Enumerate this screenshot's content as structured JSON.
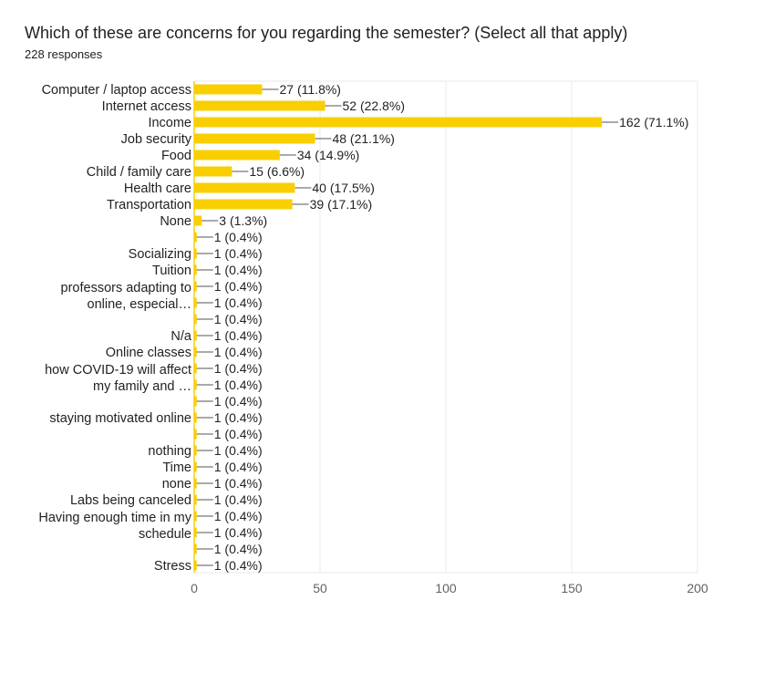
{
  "title": "Which of these are concerns for you regarding the semester? (Select all that apply)",
  "responses": "228 responses",
  "colors": {
    "bar": "#f9cf02",
    "grid": "#e8eaed",
    "axis": "#9aa0a6",
    "leader": "#555555"
  },
  "chart_data": {
    "type": "bar",
    "orientation": "horizontal",
    "xlim": [
      0,
      200
    ],
    "xticks": [
      0,
      50,
      100,
      150,
      200
    ],
    "grid": true,
    "rows": [
      {
        "category": "Computer / laptop access",
        "value": 27,
        "label": "27 (11.8%)"
      },
      {
        "category": "Internet access",
        "value": 52,
        "label": "52 (22.8%)"
      },
      {
        "category": "Income",
        "value": 162,
        "label": "162 (71.1%)"
      },
      {
        "category": "Job security",
        "value": 48,
        "label": "48 (21.1%)"
      },
      {
        "category": "Food",
        "value": 34,
        "label": "34 (14.9%)"
      },
      {
        "category": "Child / family care",
        "value": 15,
        "label": "15 (6.6%)"
      },
      {
        "category": "Health care",
        "value": 40,
        "label": "40 (17.5%)"
      },
      {
        "category": "Transportation",
        "value": 39,
        "label": "39 (17.1%)"
      },
      {
        "category": "None",
        "value": 3,
        "label": "3 (1.3%)"
      },
      {
        "category": "",
        "value": 1,
        "label": "1 (0.4%)"
      },
      {
        "category": "Socializing",
        "value": 1,
        "label": "1 (0.4%)"
      },
      {
        "category": "Tuition",
        "value": 1,
        "label": "1 (0.4%)"
      },
      {
        "category": "professors adapting to online, especial…",
        "value": 1,
        "label": "1 (0.4%)"
      },
      {
        "category": "",
        "value": 1,
        "label": "1 (0.4%)"
      },
      {
        "category": "",
        "value": 1,
        "label": "1 (0.4%)"
      },
      {
        "category": "N/a",
        "value": 1,
        "label": "1 (0.4%)"
      },
      {
        "category": "Online classes",
        "value": 1,
        "label": "1 (0.4%)"
      },
      {
        "category": "how COVID-19 will affect my family and …",
        "value": 1,
        "label": "1 (0.4%)"
      },
      {
        "category": "",
        "value": 1,
        "label": "1 (0.4%)"
      },
      {
        "category": "",
        "value": 1,
        "label": "1 (0.4%)"
      },
      {
        "category": "staying motivated online",
        "value": 1,
        "label": "1 (0.4%)"
      },
      {
        "category": "",
        "value": 1,
        "label": "1 (0.4%)"
      },
      {
        "category": "nothing",
        "value": 1,
        "label": "1 (0.4%)"
      },
      {
        "category": "Time",
        "value": 1,
        "label": "1 (0.4%)"
      },
      {
        "category": "none",
        "value": 1,
        "label": "1 (0.4%)"
      },
      {
        "category": "Labs being canceled",
        "value": 1,
        "label": "1 (0.4%)"
      },
      {
        "category": "Having enough time in my schedule",
        "value": 1,
        "label": "1 (0.4%)"
      },
      {
        "category": "",
        "value": 1,
        "label": "1 (0.4%)"
      },
      {
        "category": "",
        "value": 1,
        "label": "1 (0.4%)"
      },
      {
        "category": "Stress",
        "value": 1,
        "label": "1 (0.4%)"
      }
    ]
  }
}
